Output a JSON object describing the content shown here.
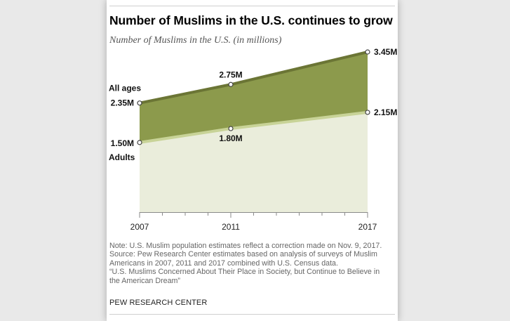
{
  "title": "Number of Muslims in the U.S. continues to grow",
  "subtitle": "Number of Muslims in the U.S. (in millions)",
  "colors": {
    "all_ages_fill": "#8c9a4c",
    "all_ages_line": "#6b7535",
    "adults_fill": "#eaeddb",
    "adults_line": "#c8d397"
  },
  "chart_data": {
    "type": "area",
    "x": [
      2007,
      2011,
      2017
    ],
    "x_tick_labels": [
      "2007",
      "2011",
      "2017"
    ],
    "ylim": [
      0,
      3.45
    ],
    "grid": false,
    "series": [
      {
        "name": "All ages",
        "values": [
          2.35,
          2.75,
          3.45
        ],
        "data_labels": [
          "2.35M",
          "2.75M",
          "3.45M"
        ]
      },
      {
        "name": "Adults",
        "values": [
          1.5,
          1.8,
          2.15
        ],
        "data_labels": [
          "1.50M",
          "1.80M",
          "2.15M"
        ]
      }
    ]
  },
  "note_lines": [
    "Note: U.S. Muslim population estimates reflect a correction made on Nov. 9, 2017.",
    "Source: Pew Research Center estimates based on analysis of surveys of Muslim",
    "Americans in 2007, 2011 and 2017 combined with U.S. Census data.",
    "“U.S. Muslims Concerned About Their Place in Society, but Continue to Believe in",
    "the American Dream”"
  ],
  "brand": "PEW RESEARCH CENTER"
}
